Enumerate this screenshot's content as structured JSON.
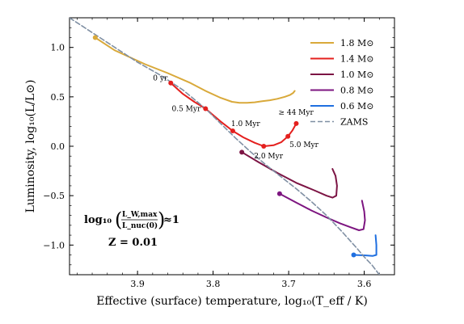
{
  "chart_data": {
    "type": "line",
    "xlabel": "Effective (surface) temperature, log₁₀(T_eff / K)",
    "ylabel": "Luminosity, log₁₀(L/L⊙)",
    "xlim": [
      3.99,
      3.56
    ],
    "ylim": [
      -1.3,
      1.3
    ],
    "x_ticks": [
      "3.9",
      "3.8",
      "3.7",
      "3.6"
    ],
    "x_tick_values": [
      3.9,
      3.8,
      3.7,
      3.6
    ],
    "y_ticks": [
      "1.0",
      "0.5",
      "0.0",
      "−0.5",
      "−1.0"
    ],
    "y_tick_values": [
      1.0,
      0.5,
      0.0,
      -0.5,
      -1.0
    ],
    "grid": false,
    "legend_position": "top-right",
    "info_text": {
      "line1_prefix": "log₁₀",
      "line1_num": "L_W,max",
      "line1_den": "L_nuc(0)",
      "line1_suffix": "≈1",
      "line2": "Z = 0.01"
    },
    "series": [
      {
        "name": "1.8 M⊙",
        "color": "#d9a93a",
        "x": [
          3.956,
          3.93,
          3.89,
          3.86,
          3.83,
          3.81,
          3.79,
          3.775,
          3.765,
          3.755,
          3.745,
          3.735,
          3.725,
          3.715,
          3.705,
          3.698,
          3.694,
          3.692
        ],
        "y": [
          1.1,
          0.97,
          0.83,
          0.74,
          0.64,
          0.56,
          0.49,
          0.45,
          0.44,
          0.44,
          0.445,
          0.455,
          0.465,
          0.48,
          0.5,
          0.52,
          0.54,
          0.56
        ],
        "markers": [
          {
            "x": 3.956,
            "y": 1.1,
            "label": ""
          }
        ]
      },
      {
        "name": "1.4 M⊙",
        "color": "#e4201e",
        "x": [
          3.856,
          3.84,
          3.825,
          3.81,
          3.79,
          3.774,
          3.76,
          3.745,
          3.733,
          3.72,
          3.71,
          3.701,
          3.695,
          3.69
        ],
        "y": [
          0.64,
          0.53,
          0.45,
          0.38,
          0.25,
          0.155,
          0.09,
          0.035,
          0.0,
          0.01,
          0.04,
          0.1,
          0.16,
          0.23
        ],
        "markers": [
          {
            "x": 3.856,
            "y": 0.64,
            "label": "0 yr"
          },
          {
            "x": 3.81,
            "y": 0.38,
            "label": "0.5 Myr"
          },
          {
            "x": 3.774,
            "y": 0.155,
            "label": "1.0 Myr"
          },
          {
            "x": 3.733,
            "y": 0.0,
            "label": "2.0 Myr"
          },
          {
            "x": 3.701,
            "y": 0.1,
            "label": "5.0 Myr"
          },
          {
            "x": 3.69,
            "y": 0.23,
            "label": "≥ 44 Myr"
          }
        ]
      },
      {
        "name": "1.0 M⊙",
        "color": "#7c1444",
        "x": [
          3.762,
          3.74,
          3.715,
          3.69,
          3.665,
          3.65,
          3.642,
          3.637,
          3.636,
          3.638,
          3.642
        ],
        "y": [
          -0.06,
          -0.16,
          -0.27,
          -0.37,
          -0.45,
          -0.5,
          -0.52,
          -0.5,
          -0.4,
          -0.3,
          -0.23
        ],
        "markers": [
          {
            "x": 3.762,
            "y": -0.06,
            "label": ""
          }
        ]
      },
      {
        "name": "0.8 M⊙",
        "color": "#7d1580",
        "x": [
          3.712,
          3.69,
          3.67,
          3.65,
          3.632,
          3.618,
          3.607,
          3.601,
          3.599,
          3.6,
          3.603
        ],
        "y": [
          -0.48,
          -0.57,
          -0.65,
          -0.72,
          -0.78,
          -0.82,
          -0.85,
          -0.84,
          -0.75,
          -0.66,
          -0.55
        ],
        "markers": [
          {
            "x": 3.712,
            "y": -0.48,
            "label": ""
          }
        ]
      },
      {
        "name": "0.6 M⊙",
        "color": "#1f6fe0",
        "x": [
          3.614,
          3.598,
          3.589,
          3.584,
          3.584,
          3.585
        ],
        "y": [
          -1.1,
          -1.105,
          -1.11,
          -1.1,
          -1.0,
          -0.9
        ],
        "markers": [
          {
            "x": 3.614,
            "y": -1.1,
            "label": ""
          }
        ]
      },
      {
        "name": "ZAMS",
        "color": "#7f8fa3",
        "dashed": true,
        "x": [
          3.99,
          3.96,
          3.93,
          3.9,
          3.87,
          3.84,
          3.81,
          3.79,
          3.77,
          3.75,
          3.73,
          3.71,
          3.69,
          3.67,
          3.65,
          3.63,
          3.61,
          3.6,
          3.59,
          3.58
        ],
        "y": [
          1.3,
          1.15,
          1.0,
          0.85,
          0.72,
          0.57,
          0.38,
          0.23,
          0.08,
          -0.06,
          -0.19,
          -0.31,
          -0.43,
          -0.56,
          -0.7,
          -0.86,
          -1.03,
          -1.12,
          -1.2,
          -1.3
        ],
        "markers": []
      }
    ]
  }
}
